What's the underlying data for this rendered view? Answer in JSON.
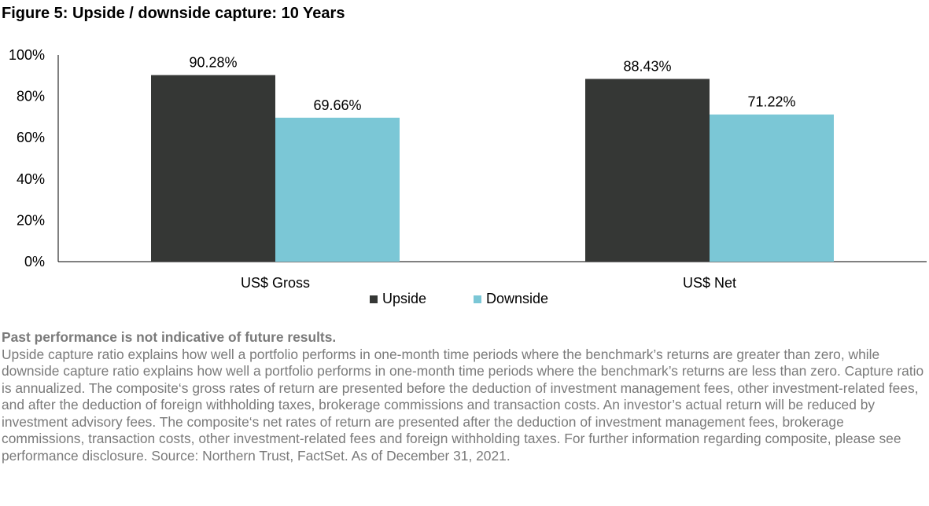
{
  "title": "Figure 5: Upside / downside capture: 10 Years",
  "chart_data": {
    "type": "bar",
    "categories": [
      "US$ Gross",
      "US$ Net"
    ],
    "series": [
      {
        "name": "Upside",
        "values": [
          90.28,
          88.43
        ],
        "labels": [
          "90.28%",
          "88.43%"
        ],
        "color": "#353735"
      },
      {
        "name": "Downside",
        "values": [
          69.66,
          71.22
        ],
        "labels": [
          "69.66%",
          "71.22%"
        ],
        "color": "#7bc7d6"
      }
    ],
    "yticks": [
      "0%",
      "20%",
      "40%",
      "60%",
      "80%",
      "100%"
    ],
    "ylim": [
      0,
      100
    ],
    "legend_position": "bottom",
    "grid": false
  },
  "footer": {
    "bold_line": "Past performance is not indicative of future results.",
    "text": "Upside capture ratio explains how well a portfolio performs in one-month time periods where the benchmark’s returns are greater than zero, while downside capture ratio explains how well a portfolio performs in one-month time periods where the benchmark’s returns are less than zero. Capture ratio is annualized. The composite‘s gross rates of return are presented before the deduction of investment management fees, other investment-related fees, and after the deduction of foreign withholding taxes, brokerage commissions and transaction costs. An investor’s actual return will be reduced by investment advisory fees. The composite‘s net rates of return are presented after the deduction of investment management fees, brokerage commissions, transaction costs,  other investment-related fees and foreign withholding taxes. For further information regarding composite, please see performance disclosure. Source: Northern Trust, FactSet. As of December 31, 2021."
  }
}
